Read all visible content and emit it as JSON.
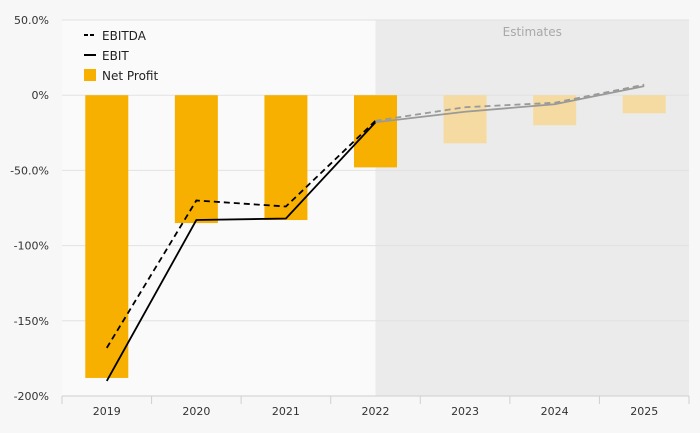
{
  "chart_data": {
    "type": "bar",
    "categories": [
      "2019",
      "2020",
      "2021",
      "2022",
      "2023",
      "2024",
      "2025"
    ],
    "estimate_start_index": 4,
    "estimates_label": "Estimates",
    "y_ticks": [
      {
        "value": 50,
        "label": "50.0%"
      },
      {
        "value": 0,
        "label": "0%"
      },
      {
        "value": -50,
        "label": "-50.0%"
      },
      {
        "value": -100,
        "label": "-100%"
      },
      {
        "value": -150,
        "label": "-150%"
      },
      {
        "value": -200,
        "label": "-200%"
      }
    ],
    "ylim": [
      -200,
      50
    ],
    "grid": true,
    "legend_position": "top-left",
    "series": [
      {
        "name": "EBITDA",
        "kind": "line",
        "style": "dashed",
        "values": [
          -168,
          -70,
          -74,
          -17,
          -8,
          -5,
          7
        ]
      },
      {
        "name": "EBIT",
        "kind": "line",
        "style": "solid",
        "values": [
          -190,
          -83,
          -82,
          -18,
          -11,
          -6,
          6
        ]
      },
      {
        "name": "Net Profit",
        "kind": "bar",
        "values": [
          -188,
          -85,
          -83,
          -48,
          -32,
          -20,
          -12
        ]
      }
    ],
    "colors": {
      "bar": "#f7b000",
      "bar_estimate": "#f5dba1",
      "line": "#000000",
      "line_estimate": "#9a9a9a",
      "estimate_bg": "#ebebeb",
      "plot_bg": "#fafafa",
      "grid": "#e2e2e2"
    }
  }
}
